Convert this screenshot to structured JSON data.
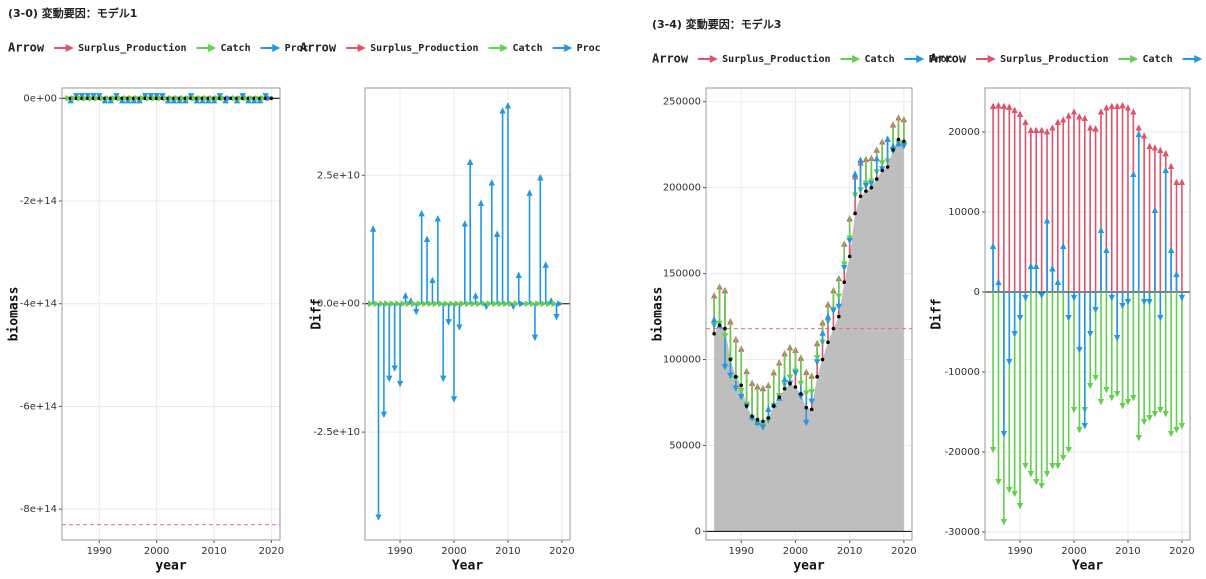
{
  "chart_data": [
    {
      "type": "arrow",
      "title": "(3-0) 変動要因：モデル1",
      "legend_title": "Arrow",
      "xlabel": "year",
      "ylabel": "biomass",
      "x": [
        1985,
        1986,
        1987,
        1988,
        1989,
        1990,
        1991,
        1992,
        1993,
        1994,
        1995,
        1996,
        1997,
        1998,
        1999,
        2000,
        2001,
        2002,
        2003,
        2004,
        2005,
        2006,
        2007,
        2008,
        2009,
        2010,
        2011,
        2012,
        2013,
        2014,
        2015,
        2016,
        2017,
        2018,
        2019,
        2020
      ],
      "biomass": [
        0,
        0,
        0,
        0,
        0,
        0,
        0,
        0,
        0,
        0,
        0,
        0,
        0,
        0,
        0,
        0,
        0,
        0,
        0,
        0,
        0,
        0,
        0,
        0,
        0,
        0,
        0,
        0,
        0,
        0,
        0,
        0,
        0,
        0,
        0,
        0
      ],
      "series": [
        {
          "name": "Surplus_Production",
          "color": "#df536b",
          "values": [
            0,
            0,
            0,
            0,
            0,
            0,
            0,
            0,
            0,
            0,
            0,
            0,
            0,
            0,
            0,
            0,
            0,
            0,
            0,
            0,
            0,
            0,
            0,
            0,
            0,
            0,
            0,
            0,
            0,
            0,
            0,
            0,
            0,
            0,
            0,
            0
          ]
        },
        {
          "name": "Catch",
          "color": "#61d04f",
          "values": [
            0,
            0,
            0,
            0,
            0,
            0,
            0,
            0,
            0,
            0,
            0,
            0,
            0,
            0,
            0,
            0,
            0,
            0,
            0,
            0,
            0,
            0,
            0,
            0,
            0,
            0,
            0,
            0,
            0,
            0,
            0,
            0,
            0,
            0,
            0,
            0
          ]
        },
        {
          "name": "Proc",
          "color": "#2297e6",
          "values": [
            15000000000,
            -42000000000,
            -22000000000,
            -15000000000,
            -13000000000,
            -16000000000,
            2000000000,
            1000000000,
            -2000000000,
            18000000000,
            13000000000,
            5000000000,
            17000000000,
            -15000000000,
            -4000000000,
            -19000000000,
            -5000000000,
            16000000000,
            28000000000,
            2000000000,
            20000000000,
            -1000000000,
            24000000000,
            14000000000,
            38000000000,
            39000000000,
            -1000000000,
            6000000000,
            0,
            22000000000,
            -7000000000,
            25000000000,
            8000000000,
            1000000000,
            -3000000000,
            0
          ]
        }
      ],
      "hline": -830000000000000,
      "xlim": [
        1983.5,
        2021.5
      ],
      "xticks": [
        1990,
        2000,
        2010,
        2020
      ],
      "ylim": [
        -860000000000000,
        20000000000000
      ],
      "yticks": [
        {
          "value": 0,
          "label": "0e+00"
        },
        {
          "value": -200000000000000,
          "label": "-2e+14"
        },
        {
          "value": -400000000000000,
          "label": "-4e+14"
        },
        {
          "value": -600000000000000,
          "label": "-6e+14"
        },
        {
          "value": -800000000000000,
          "label": "-8e+14"
        }
      ],
      "grid": true
    },
    {
      "type": "arrow",
      "legend_title": "Arrow",
      "xlabel": "Year",
      "ylabel": "Diff",
      "x": [
        1985,
        1986,
        1987,
        1988,
        1989,
        1990,
        1991,
        1992,
        1993,
        1994,
        1995,
        1996,
        1997,
        1998,
        1999,
        2000,
        2001,
        2002,
        2003,
        2004,
        2005,
        2006,
        2007,
        2008,
        2009,
        2010,
        2011,
        2012,
        2013,
        2014,
        2015,
        2016,
        2017,
        2018,
        2019,
        2020
      ],
      "series": [
        {
          "name": "Surplus_Production",
          "color": "#df536b",
          "values": [
            0,
            0,
            0,
            0,
            0,
            0,
            0,
            0,
            0,
            0,
            0,
            0,
            0,
            0,
            0,
            0,
            0,
            0,
            0,
            0,
            0,
            0,
            0,
            0,
            0,
            0,
            0,
            0,
            0,
            0,
            0,
            0,
            0,
            0,
            0,
            0
          ]
        },
        {
          "name": "Catch",
          "color": "#61d04f",
          "values": [
            0,
            0,
            0,
            0,
            0,
            0,
            0,
            0,
            0,
            0,
            0,
            0,
            0,
            0,
            0,
            0,
            0,
            0,
            0,
            0,
            0,
            0,
            0,
            0,
            0,
            0,
            0,
            0,
            0,
            0,
            0,
            0,
            0,
            0,
            0,
            0
          ]
        },
        {
          "name": "Proc",
          "color": "#2297e6",
          "values": [
            15000000000,
            -42000000000,
            -22000000000,
            -15000000000,
            -13000000000,
            -16000000000,
            2000000000,
            1000000000,
            -2000000000,
            18000000000,
            13000000000,
            5000000000,
            17000000000,
            -15000000000,
            -4000000000,
            -19000000000,
            -5000000000,
            16000000000,
            28000000000,
            2000000000,
            20000000000,
            -1000000000,
            24000000000,
            14000000000,
            38000000000,
            39000000000,
            -1000000000,
            6000000000,
            0,
            22000000000,
            -7000000000,
            25000000000,
            8000000000,
            1000000000,
            -3000000000,
            0
          ]
        }
      ],
      "xlim": [
        1983.5,
        2021.5
      ],
      "xticks": [
        1990,
        2000,
        2010,
        2020
      ],
      "ylim": [
        -46000000000,
        42000000000
      ],
      "yticks": [
        {
          "value": -25000000000,
          "label": "-2.5e+10"
        },
        {
          "value": 0,
          "label": "0.0e+00"
        },
        {
          "value": 25000000000,
          "label": "2.5e+10"
        }
      ],
      "grid": true
    },
    {
      "type": "arrow",
      "title": "(3-4) 変動要因：モデル3",
      "legend_title": "Arrow",
      "xlabel": "year",
      "ylabel": "biomass",
      "x": [
        1985,
        1986,
        1987,
        1988,
        1989,
        1990,
        1991,
        1992,
        1993,
        1994,
        1995,
        1996,
        1997,
        1998,
        1999,
        2000,
        2001,
        2002,
        2003,
        2004,
        2005,
        2006,
        2007,
        2008,
        2009,
        2010,
        2011,
        2012,
        2013,
        2014,
        2015,
        2016,
        2017,
        2018,
        2019,
        2020
      ],
      "biomass": [
        115000,
        120000,
        118000,
        100000,
        90000,
        85000,
        73000,
        67000,
        65000,
        64000,
        66000,
        73000,
        78000,
        83000,
        86000,
        84000,
        80000,
        72000,
        71000,
        90000,
        100000,
        110000,
        118000,
        125000,
        145000,
        160000,
        185000,
        195000,
        198000,
        200000,
        205000,
        210000,
        212000,
        222000,
        228000,
        227000
      ],
      "series": [
        {
          "name": "Surplus_Production",
          "color": "#df536b",
          "values": [
            23500,
            23600,
            23500,
            23400,
            23000,
            22500,
            21500,
            20500,
            20500,
            20500,
            20300,
            20800,
            21500,
            21800,
            22300,
            22800,
            22200,
            22000,
            20800,
            20700,
            22800,
            23300,
            23500,
            23500,
            23600,
            23300,
            22800,
            20800,
            19800,
            18500,
            18300,
            18000,
            17600,
            16000,
            14000,
            14000
          ]
        },
        {
          "name": "Catch",
          "color": "#61d04f",
          "values": [
            -20000,
            -24000,
            -29000,
            -25000,
            -25500,
            -27000,
            -22000,
            -23000,
            -24000,
            -24500,
            -23000,
            -22000,
            -22000,
            -21000,
            -20000,
            -15000,
            -17500,
            -15000,
            -12000,
            -11000,
            -14000,
            -12500,
            -13500,
            -13000,
            -14500,
            -14000,
            -13500,
            -18500,
            -16500,
            -16000,
            -15500,
            -15000,
            -15500,
            -18000,
            -17500,
            -17000
          ]
        },
        {
          "name": "Proc",
          "color": "#2297e6",
          "values": [
            6000,
            1500,
            -18000,
            -9000,
            -5500,
            -3500,
            -1000,
            3500,
            3500,
            -700,
            9200,
            3200,
            1500,
            6000,
            -3500,
            -1000,
            -7500,
            -17000,
            -5500,
            -2500,
            8000,
            5500,
            -1000,
            -6000,
            -2000,
            -1500,
            15000,
            20000,
            -1500,
            -1500,
            10500,
            -3500,
            15500,
            5500,
            2500,
            -1000
          ]
        }
      ],
      "hline": 118000,
      "area": true,
      "xlim": [
        1983.5,
        2021.5
      ],
      "xticks": [
        1990,
        2000,
        2010,
        2020
      ],
      "ylim": [
        -5000,
        258000
      ],
      "yticks": [
        0,
        50000,
        100000,
        150000,
        200000,
        250000
      ],
      "grid": true
    },
    {
      "type": "arrow",
      "legend_title": "Arrow",
      "xlabel": "Year",
      "ylabel": "Diff",
      "x": [
        1985,
        1986,
        1987,
        1988,
        1989,
        1990,
        1991,
        1992,
        1993,
        1994,
        1995,
        1996,
        1997,
        1998,
        1999,
        2000,
        2001,
        2002,
        2003,
        2004,
        2005,
        2006,
        2007,
        2008,
        2009,
        2010,
        2011,
        2012,
        2013,
        2014,
        2015,
        2016,
        2017,
        2018,
        2019,
        2020
      ],
      "series": [
        {
          "name": "Surplus_Production",
          "color": "#df536b",
          "values": [
            23500,
            23600,
            23500,
            23400,
            23000,
            22500,
            21500,
            20500,
            20500,
            20500,
            20300,
            20800,
            21500,
            21800,
            22300,
            22800,
            22200,
            22000,
            20800,
            20700,
            22800,
            23300,
            23500,
            23500,
            23600,
            23300,
            22800,
            20800,
            19800,
            18500,
            18300,
            18000,
            17600,
            16000,
            14000,
            14000
          ]
        },
        {
          "name": "Catch",
          "color": "#61d04f",
          "values": [
            -20000,
            -24000,
            -29000,
            -25000,
            -25500,
            -27000,
            -22000,
            -23000,
            -24000,
            -24500,
            -23000,
            -22000,
            -22000,
            -21000,
            -20000,
            -15000,
            -17500,
            -15000,
            -12000,
            -11000,
            -14000,
            -12500,
            -13500,
            -13000,
            -14500,
            -14000,
            -13500,
            -18500,
            -16500,
            -16000,
            -15500,
            -15000,
            -15500,
            -18000,
            -17500,
            -17000
          ]
        },
        {
          "name": "Proc",
          "color": "#2297e6",
          "values": [
            6000,
            1500,
            -18000,
            -9000,
            -5500,
            -3500,
            -1000,
            3500,
            3500,
            -700,
            9200,
            3200,
            1500,
            6000,
            -3500,
            -1000,
            -7500,
            -17000,
            -5500,
            -2500,
            8000,
            5500,
            -1000,
            -6000,
            -2000,
            -1500,
            15000,
            20000,
            -1500,
            -1500,
            10500,
            -3500,
            15500,
            5500,
            2500,
            -1000
          ]
        }
      ],
      "xlim": [
        1983.5,
        2021.5
      ],
      "xticks": [
        1990,
        2000,
        2010,
        2020
      ],
      "ylim": [
        -31000,
        25500
      ],
      "yticks": [
        -30000,
        -20000,
        -10000,
        0,
        10000,
        20000
      ],
      "grid": true
    }
  ]
}
